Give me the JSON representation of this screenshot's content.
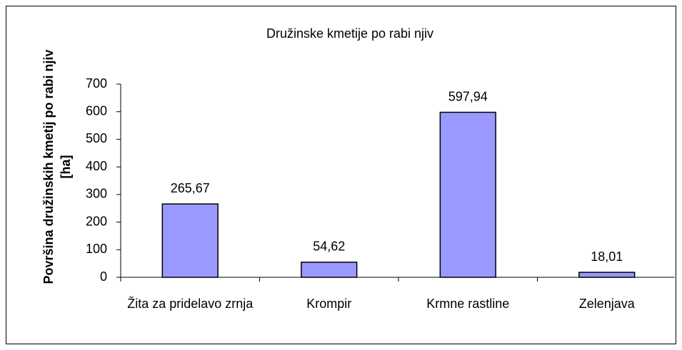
{
  "chart_data": {
    "type": "bar",
    "title": "Družinske kmetije po rabi njiv",
    "y_label": "Površina družinskih kmetij po rabi njiv [ha]",
    "categories": [
      "Žita za pridelavo zrnja",
      "Krompir",
      "Krmne rastline",
      "Zelenjava"
    ],
    "values": [
      265.67,
      54.62,
      597.94,
      18.01
    ],
    "value_labels": [
      "265,67",
      "54,62",
      "597,94",
      "18,01"
    ],
    "color": "#9999ff",
    "ylim": [
      0,
      700
    ],
    "yticks": [
      0,
      100,
      200,
      300,
      400,
      500,
      600,
      700
    ],
    "grid": false
  }
}
